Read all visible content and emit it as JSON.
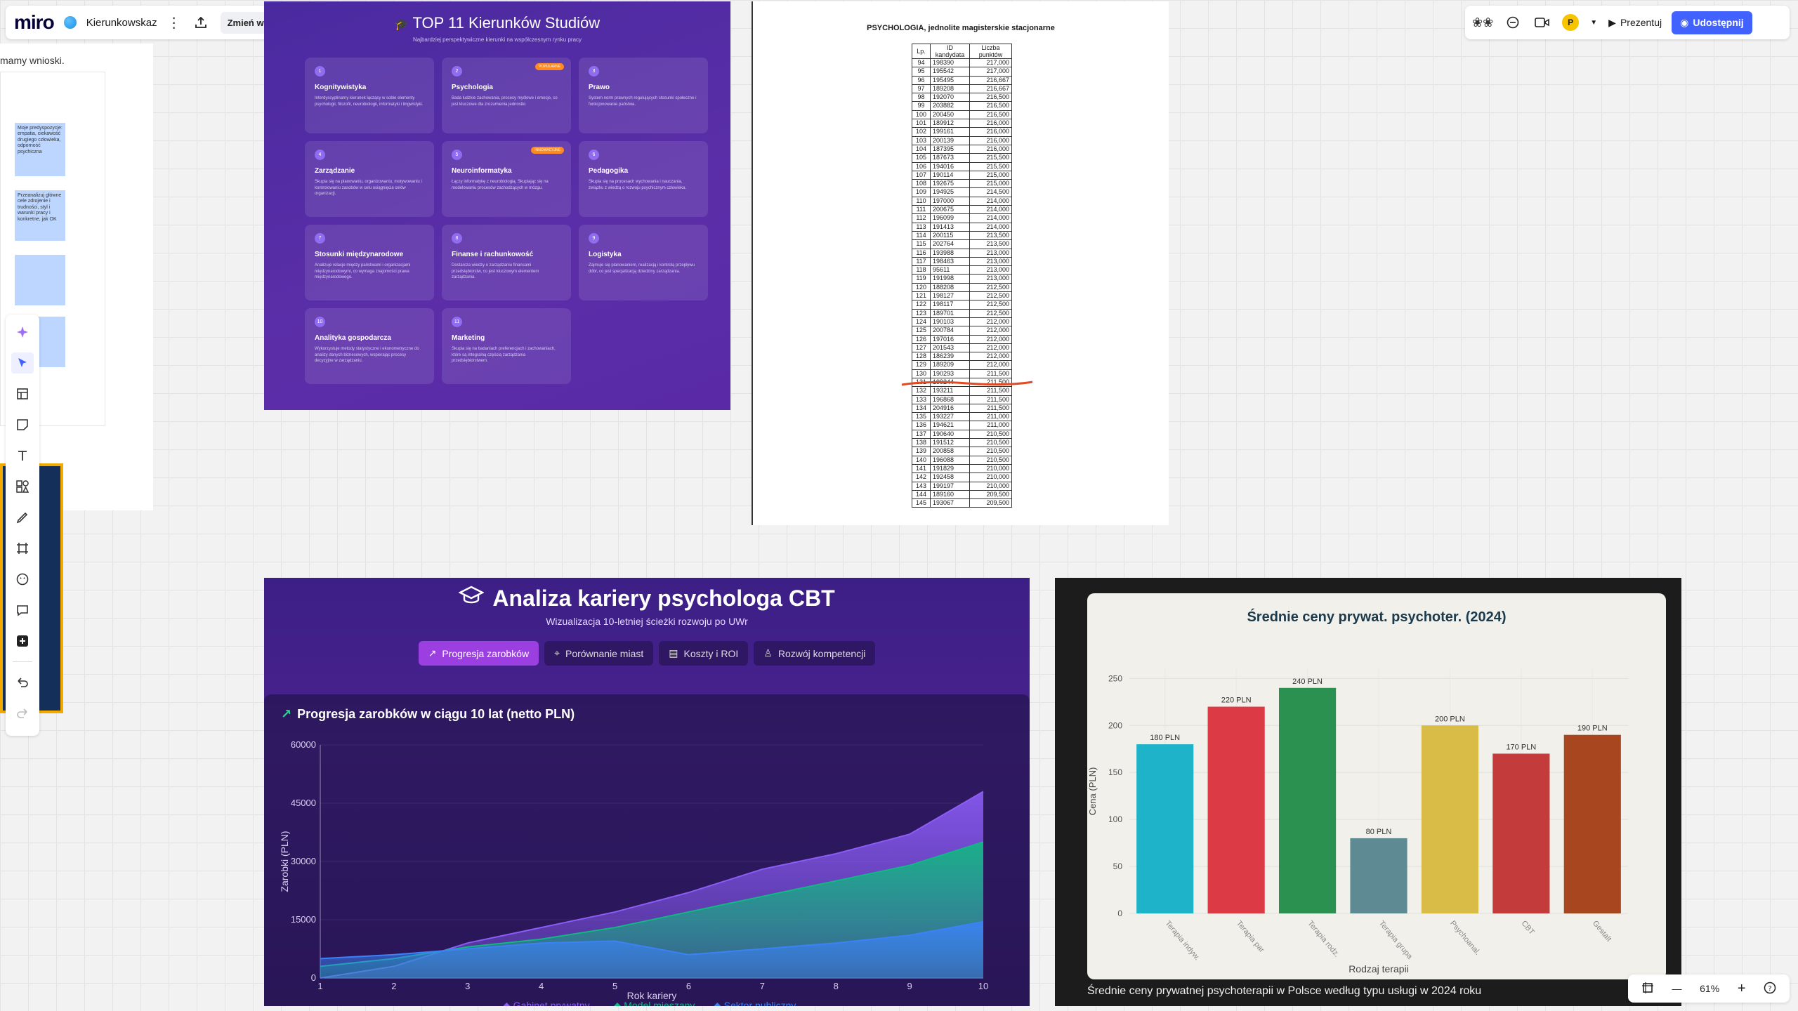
{
  "app": {
    "logo": "miro",
    "board_name": "Kierunkowskaz",
    "version_button": "Zmień wersję",
    "present_label": "Prezentuj",
    "share_label": "Udostępnij",
    "avatar_initial": "P",
    "zoom_level": "61%"
  },
  "left_fragment": {
    "text": "mamy wnioski.",
    "sticky1": "Moje predyspozycje: empatia, ciekawość drugiego człowieka, odporność psychiczna",
    "sticky2": "Przeanalizuj główne cele zdrojenie i trudności, styl i warunki pracy i konkretne, jak OK"
  },
  "studies": {
    "title": "TOP 11 Kierunków Studiów",
    "subtitle": "Najbardziej perspektywiczne kierunki na współczesnym rynku pracy",
    "cards": [
      {
        "num": "1",
        "title": "Kognitywistyka",
        "desc": "Interdyscyplinarny kierunek łączący w sobie elementy psychologii, filozofii, neurobiologii, informatyki i lingwistyki.",
        "badge": ""
      },
      {
        "num": "2",
        "title": "Psychologia",
        "desc": "Bada ludzkie zachowania, procesy myślowe i emocje, co jest kluczowe dla zrozumienia jednostki.",
        "badge": "POPULARNE"
      },
      {
        "num": "3",
        "title": "Prawo",
        "desc": "System norm prawnych regulujących stosunki społeczne i funkcjonowanie państwa.",
        "badge": ""
      },
      {
        "num": "4",
        "title": "Zarządzanie",
        "desc": "Skupia się na planowaniu, organizowaniu, motywowaniu i kontrolowaniu zasobów w celu osiągnięcia celów organizacji.",
        "badge": ""
      },
      {
        "num": "5",
        "title": "Neuroinformatyka",
        "desc": "Łączy informatykę z neurobiologią. Skupiając się na modelowaniu procesów zachodzących w mózgu.",
        "badge": "INNOWACYJNE"
      },
      {
        "num": "6",
        "title": "Pedagogika",
        "desc": "Skupia się na procesach wychowania i nauczania, związku z wiedzą o rozwoju psychicznym człowieka.",
        "badge": ""
      },
      {
        "num": "7",
        "title": "Stosunki międzynarodowe",
        "desc": "Analizuje relacje między państwami i organizacjami międzynarodowymi, co wymaga znajomości prawa międzynarodowego.",
        "badge": ""
      },
      {
        "num": "8",
        "title": "Finanse i rachunkowość",
        "desc": "Dostarcza wiedzy o zarządzaniu finansami przedsiębiorstw, co jest kluczowym elementem zarządzania.",
        "badge": ""
      },
      {
        "num": "9",
        "title": "Logistyka",
        "desc": "Zajmuje się planowaniem, realizacją i kontrolą przepływu dóbr, co jest specjalizacją dziedziny zarządzania.",
        "badge": ""
      },
      {
        "num": "10",
        "title": "Analityka gospodarcza",
        "desc": "Wykorzystuje metody statystyczne i ekonometryczne do analizy danych biznesowych, wspierając procesy decyzyjne w zarządzaniu.",
        "badge": ""
      },
      {
        "num": "11",
        "title": "Marketing",
        "desc": "Skupia się na badaniach preferencjach i zachowaniach, które są integralną częścią zarządzania przedsiębiorstwem.",
        "badge": ""
      }
    ]
  },
  "ranking": {
    "title": "PSYCHOLOGIA, jednolite magisterskie stacjonarne",
    "headers": [
      "Lp.",
      "ID kandydata",
      "Liczba punktów"
    ],
    "rows": [
      [
        "94",
        "198390",
        "217,000"
      ],
      [
        "95",
        "195542",
        "217,000"
      ],
      [
        "96",
        "195495",
        "216,667"
      ],
      [
        "97",
        "189208",
        "216,667"
      ],
      [
        "98",
        "192070",
        "216,500"
      ],
      [
        "99",
        "203882",
        "216,500"
      ],
      [
        "100",
        "200450",
        "216,500"
      ],
      [
        "101",
        "189912",
        "216,000"
      ],
      [
        "102",
        "199161",
        "216,000"
      ],
      [
        "103",
        "200139",
        "216,000"
      ],
      [
        "104",
        "187395",
        "216,000"
      ],
      [
        "105",
        "187673",
        "215,500"
      ],
      [
        "106",
        "194016",
        "215,500"
      ],
      [
        "107",
        "190114",
        "215,000"
      ],
      [
        "108",
        "192675",
        "215,000"
      ],
      [
        "109",
        "194925",
        "214,500"
      ],
      [
        "110",
        "197000",
        "214,000"
      ],
      [
        "111",
        "200675",
        "214,000"
      ],
      [
        "112",
        "196099",
        "214,000"
      ],
      [
        "113",
        "191413",
        "214,000"
      ],
      [
        "114",
        "200115",
        "213,500"
      ],
      [
        "115",
        "202764",
        "213,500"
      ],
      [
        "116",
        "193988",
        "213,000"
      ],
      [
        "117",
        "198463",
        "213,000"
      ],
      [
        "118",
        "95611",
        "213,000"
      ],
      [
        "119",
        "191998",
        "213,000"
      ],
      [
        "120",
        "188208",
        "212,500"
      ],
      [
        "121",
        "198127",
        "212,500"
      ],
      [
        "122",
        "198117",
        "212,500"
      ],
      [
        "123",
        "189701",
        "212,500"
      ],
      [
        "124",
        "190103",
        "212,000"
      ],
      [
        "125",
        "200784",
        "212,000"
      ],
      [
        "126",
        "197016",
        "212,000"
      ],
      [
        "127",
        "201543",
        "212,000"
      ],
      [
        "128",
        "186239",
        "212,000"
      ],
      [
        "129",
        "189209",
        "212,000"
      ],
      [
        "130",
        "190293",
        "211,500"
      ],
      [
        "131",
        "199244",
        "211,500"
      ],
      [
        "132",
        "193211",
        "211,500"
      ],
      [
        "133",
        "196868",
        "211,500"
      ],
      [
        "134",
        "204916",
        "211,500"
      ],
      [
        "135",
        "193227",
        "211,000"
      ],
      [
        "136",
        "194621",
        "211,000"
      ],
      [
        "137",
        "190640",
        "210,500"
      ],
      [
        "138",
        "191512",
        "210,500"
      ],
      [
        "139",
        "200858",
        "210,500"
      ],
      [
        "140",
        "196088",
        "210,500"
      ],
      [
        "141",
        "191829",
        "210,000"
      ],
      [
        "142",
        "192458",
        "210,000"
      ],
      [
        "143",
        "199197",
        "210,000"
      ],
      [
        "144",
        "189160",
        "209,500"
      ],
      [
        "145",
        "193067",
        "209,500"
      ]
    ]
  },
  "career": {
    "title": "Analiza kariery psychologa CBT",
    "subtitle": "Wizualizacja 10-letniej ścieżki rozwoju po UWr",
    "tabs": [
      "Progresja zarobków",
      "Porównanie miast",
      "Koszty i ROI",
      "Rozwój kompetencji"
    ],
    "active_tab": 0,
    "chart_title": "Progresja zarobków w ciągu 10 lat (netto PLN)"
  },
  "chart_data": [
    {
      "type": "area",
      "title": "Progresja zarobków w ciągu 10 lat (netto PLN)",
      "xlabel": "Rok kariery",
      "ylabel": "Zarobki (PLN)",
      "x": [
        1,
        2,
        3,
        4,
        5,
        6,
        7,
        8,
        9,
        10
      ],
      "xlim": [
        1,
        10
      ],
      "ylim": [
        0,
        60000
      ],
      "yticks": [
        0,
        15000,
        30000,
        45000,
        60000
      ],
      "legend_position": "bottom",
      "series": [
        {
          "name": "Gabinet prywatny",
          "color": "#8b5cf6",
          "values": [
            0,
            3000,
            9000,
            13000,
            17000,
            22000,
            28000,
            32000,
            37000,
            48000
          ]
        },
        {
          "name": "Model mieszany",
          "color": "#10b981",
          "values": [
            3000,
            5000,
            8000,
            10000,
            13000,
            17000,
            21000,
            25000,
            29000,
            35000
          ]
        },
        {
          "name": "Sektor publiczny",
          "color": "#3b82f6",
          "values": [
            5000,
            6000,
            7500,
            9000,
            9500,
            6000,
            7500,
            9000,
            11000,
            14500
          ]
        }
      ]
    },
    {
      "type": "bar",
      "title": "Średnie ceny prywat. psychoter. (2024)",
      "xlabel": "Rodzaj terapii",
      "ylabel": "Cena (PLN)",
      "ylim": [
        0,
        260
      ],
      "yticks": [
        0,
        50,
        100,
        150,
        200,
        250
      ],
      "categories": [
        "Terapia indyw.",
        "Terapia par",
        "Terapia rodz.",
        "Terapia grupa",
        "Psychoanal.",
        "CBT",
        "Gestalt"
      ],
      "values": [
        180,
        220,
        240,
        80,
        200,
        170,
        190
      ],
      "value_labels": [
        "180 PLN",
        "220 PLN",
        "240 PLN",
        "80 PLN",
        "200 PLN",
        "170 PLN",
        "190 PLN"
      ],
      "colors": [
        "#1fb3c9",
        "#dc3a45",
        "#2a9150",
        "#5e8a93",
        "#d9bb47",
        "#c43b3b",
        "#a8461f"
      ],
      "caption": "Średnie ceny prywatnej psychoterapii w Polsce według typu usługi w 2024 roku"
    }
  ]
}
